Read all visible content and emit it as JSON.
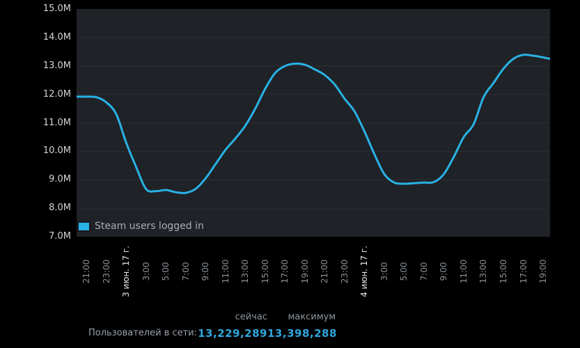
{
  "colors": {
    "page_bg": "#000000",
    "plot_bg": "#1f2227",
    "grid": "#2b2e33",
    "line": "#29b2e5",
    "y_label": "#d2d6da",
    "x_time_label": "#8b9197",
    "x_date_label": "#e4e7ea",
    "legend_text": "#a8aeb4",
    "stats_header": "#8e969c",
    "stats_label": "#9aa1a8",
    "stats_value": "#31a7dd"
  },
  "legend": {
    "label": "Steam users logged in"
  },
  "stats": {
    "now_header": "сейчас",
    "max_header": "максимум",
    "row_label": "Пользователей в сети:",
    "now_value": "13,229,289",
    "max_value": "13,398,288"
  },
  "chart_data": {
    "type": "line",
    "title": "Steam users logged in",
    "ylabel": "",
    "xlabel": "",
    "ylim": [
      7,
      15
    ],
    "xlim": [
      0,
      47.7
    ],
    "grid": "horizontal-only",
    "legend_position": "bottom-left-inside",
    "y_ticks": [
      {
        "label": "15.0M",
        "value": 15
      },
      {
        "label": "14.0M",
        "value": 14
      },
      {
        "label": "13.0M",
        "value": 13
      },
      {
        "label": "12.0M",
        "value": 12
      },
      {
        "label": "11.0M",
        "value": 11
      },
      {
        "label": "10.0M",
        "value": 10
      },
      {
        "label": "9.0M",
        "value": 9
      },
      {
        "label": "8.0M",
        "value": 8
      },
      {
        "label": "7.0M",
        "value": 7
      }
    ],
    "x_ticks": [
      {
        "label": "21:00",
        "t": 1,
        "date": false
      },
      {
        "label": "23:00",
        "t": 3,
        "date": false
      },
      {
        "label": "3 июн. 17 г.",
        "t": 5,
        "date": true
      },
      {
        "label": "3:00",
        "t": 7,
        "date": false
      },
      {
        "label": "5:00",
        "t": 9,
        "date": false
      },
      {
        "label": "7:00",
        "t": 11,
        "date": false
      },
      {
        "label": "9:00",
        "t": 13,
        "date": false
      },
      {
        "label": "11:00",
        "t": 15,
        "date": false
      },
      {
        "label": "13:00",
        "t": 17,
        "date": false
      },
      {
        "label": "15:00",
        "t": 19,
        "date": false
      },
      {
        "label": "17:00",
        "t": 21,
        "date": false
      },
      {
        "label": "19:00",
        "t": 23,
        "date": false
      },
      {
        "label": "21:00",
        "t": 25,
        "date": false
      },
      {
        "label": "23:00",
        "t": 27,
        "date": false
      },
      {
        "label": "4 июн. 17 г.",
        "t": 29,
        "date": true
      },
      {
        "label": "3:00",
        "t": 31,
        "date": false
      },
      {
        "label": "5:00",
        "t": 33,
        "date": false
      },
      {
        "label": "7:00",
        "t": 35,
        "date": false
      },
      {
        "label": "9:00",
        "t": 37,
        "date": false
      },
      {
        "label": "11:00",
        "t": 39,
        "date": false
      },
      {
        "label": "13:00",
        "t": 41,
        "date": false
      },
      {
        "label": "15:00",
        "t": 43,
        "date": false
      },
      {
        "label": "17:00",
        "t": 45,
        "date": false
      },
      {
        "label": "19:00",
        "t": 47,
        "date": false
      }
    ],
    "series": [
      {
        "name": "Steam users logged in",
        "unit": "millions of users",
        "x": [
          0,
          1,
          2,
          3,
          4,
          5,
          6,
          7,
          8,
          9,
          10,
          11,
          12,
          13,
          14,
          15,
          16,
          17,
          18,
          19,
          20,
          21,
          22,
          23,
          24,
          25,
          26,
          27,
          28,
          29,
          30,
          31,
          32,
          33,
          34,
          35,
          36,
          37,
          38,
          39,
          40,
          41,
          42,
          43,
          44,
          45,
          46,
          47,
          47.7
        ],
        "y": [
          11.92,
          11.92,
          11.9,
          11.72,
          11.3,
          10.3,
          9.45,
          8.67,
          8.6,
          8.64,
          8.56,
          8.54,
          8.68,
          9.05,
          9.55,
          10.05,
          10.45,
          10.9,
          11.5,
          12.2,
          12.75,
          13.0,
          13.08,
          13.04,
          12.88,
          12.68,
          12.35,
          11.85,
          11.4,
          10.7,
          9.9,
          9.2,
          8.9,
          8.86,
          8.88,
          8.9,
          8.92,
          9.2,
          9.8,
          10.5,
          10.95,
          11.9,
          12.4,
          12.9,
          13.25,
          13.39,
          13.36,
          13.3,
          13.25
        ]
      }
    ]
  }
}
